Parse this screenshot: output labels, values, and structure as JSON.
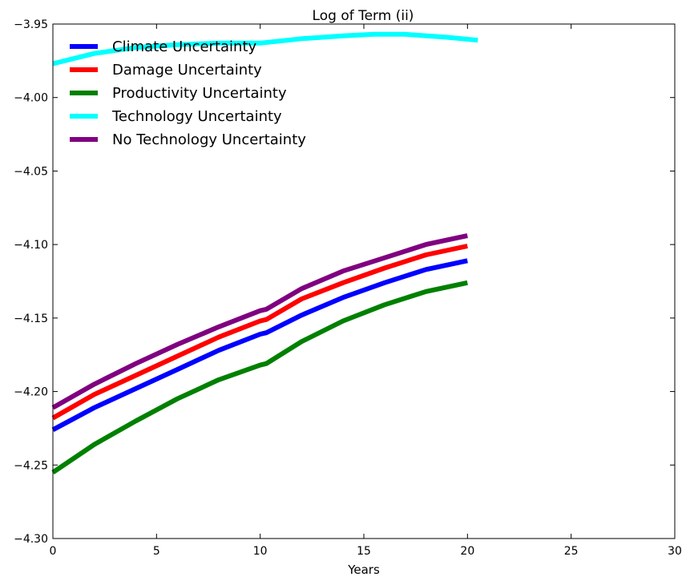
{
  "chart_data": {
    "type": "line",
    "title": "Log of Term (ii)",
    "xlabel": "Years",
    "ylabel": "",
    "xlim": [
      0,
      30
    ],
    "ylim": [
      -4.3,
      -3.95
    ],
    "xticks": [
      0,
      5,
      10,
      15,
      20,
      25,
      30
    ],
    "xtick_labels": [
      "0",
      "5",
      "10",
      "15",
      "20",
      "25",
      "30"
    ],
    "yticks": [
      -4.3,
      -4.25,
      -4.2,
      -4.15,
      -4.1,
      -4.05,
      -4.0,
      -3.95
    ],
    "ytick_labels": [
      "−4.30",
      "−4.25",
      "−4.20",
      "−4.15",
      "−4.10",
      "−4.05",
      "−4.00",
      "−3.95"
    ],
    "grid": false,
    "legend_position": "top-left",
    "series": [
      {
        "name": "Climate Uncertainty",
        "color": "#0000ff",
        "x": [
          0,
          2,
          4,
          6,
          8,
          10,
          10.3,
          12,
          14,
          16,
          18,
          20
        ],
        "y": [
          -4.226,
          -4.211,
          -4.198,
          -4.185,
          -4.172,
          -4.161,
          -4.16,
          -4.148,
          -4.136,
          -4.126,
          -4.117,
          -4.111
        ]
      },
      {
        "name": "Damage Uncertainty",
        "color": "#ff0000",
        "x": [
          0,
          2,
          4,
          6,
          8,
          10,
          10.3,
          12,
          14,
          16,
          18,
          20
        ],
        "y": [
          -4.218,
          -4.202,
          -4.189,
          -4.176,
          -4.163,
          -4.152,
          -4.151,
          -4.137,
          -4.126,
          -4.116,
          -4.107,
          -4.101
        ]
      },
      {
        "name": "Productivity Uncertainty",
        "color": "#008000",
        "x": [
          0,
          2,
          4,
          6,
          8,
          10,
          10.3,
          12,
          14,
          16,
          18,
          20
        ],
        "y": [
          -4.255,
          -4.236,
          -4.22,
          -4.205,
          -4.192,
          -4.182,
          -4.181,
          -4.166,
          -4.152,
          -4.141,
          -4.132,
          -4.126
        ]
      },
      {
        "name": "Technology Uncertainty",
        "color": "#00ffff",
        "x": [
          0,
          2,
          4,
          6,
          8,
          10,
          12,
          14,
          15.5,
          17,
          19,
          20.5
        ],
        "y": [
          -3.977,
          -3.97,
          -3.966,
          -3.964,
          -3.963,
          -3.963,
          -3.96,
          -3.958,
          -3.957,
          -3.957,
          -3.959,
          -3.961
        ]
      },
      {
        "name": "No Technology Uncertainty",
        "color": "#800080",
        "x": [
          0,
          2,
          4,
          6,
          8,
          10,
          10.3,
          12,
          14,
          16,
          18,
          20
        ],
        "y": [
          -4.211,
          -4.195,
          -4.181,
          -4.168,
          -4.156,
          -4.145,
          -4.144,
          -4.13,
          -4.118,
          -4.109,
          -4.1,
          -4.094
        ]
      }
    ]
  }
}
